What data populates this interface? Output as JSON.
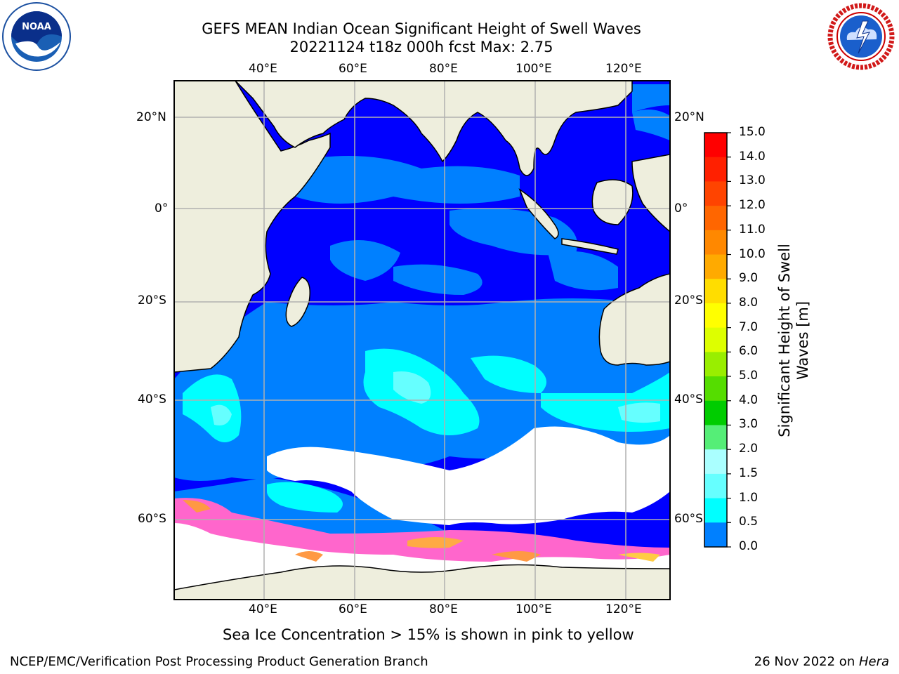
{
  "header": {
    "title_line1": "GEFS MEAN Indian Ocean Significant Height of Swell Waves",
    "title_line2": "20221124 t18z 000h fcst   Max: 2.75"
  },
  "logos": {
    "left": "NOAA",
    "right": "NATIONAL WEATHER SERVICE"
  },
  "map": {
    "lon_ticks": [
      "40°E",
      "60°E",
      "80°E",
      "100°E",
      "120°E"
    ],
    "lat_ticks_left": [
      "20°N",
      "0°",
      "20°S",
      "40°S",
      "60°S"
    ],
    "lat_ticks_right": [
      "20°N",
      "0°",
      "20°S",
      "40°S",
      "60°S"
    ],
    "land_color": "#eeeedd",
    "ocean_color": "#0000ff"
  },
  "colorbar": {
    "label_line1": "Significant Height of Swell",
    "label_line2": "Waves [m]",
    "ticks": [
      "15.0",
      "14.0",
      "13.0",
      "12.0",
      "11.0",
      "10.0",
      "9.0",
      "8.0",
      "7.0",
      "6.0",
      "5.0",
      "4.0",
      "3.0",
      "2.0",
      "1.5",
      "1.0",
      "0.5",
      "0.0"
    ],
    "colors": [
      "#ff0000",
      "#ff2000",
      "#ff4000",
      "#ff6000",
      "#ff8000",
      "#ffa000",
      "#ffcc00",
      "#ffee00",
      "#ffff00",
      "#ccff00",
      "#88ee00",
      "#44dd00",
      "#00cc00",
      "#44ee88",
      "#aaffff",
      "#66ffff",
      "#00ffff",
      "#0080ff",
      "#0000ff"
    ]
  },
  "caption": "Sea Ice Concentration > 15% is shown in pink to yellow",
  "footer": {
    "left": "NCEP/EMC/Verification Post Processing Product Generation Branch",
    "right_date": "26 Nov 2022 on ",
    "right_host": "Hera"
  }
}
